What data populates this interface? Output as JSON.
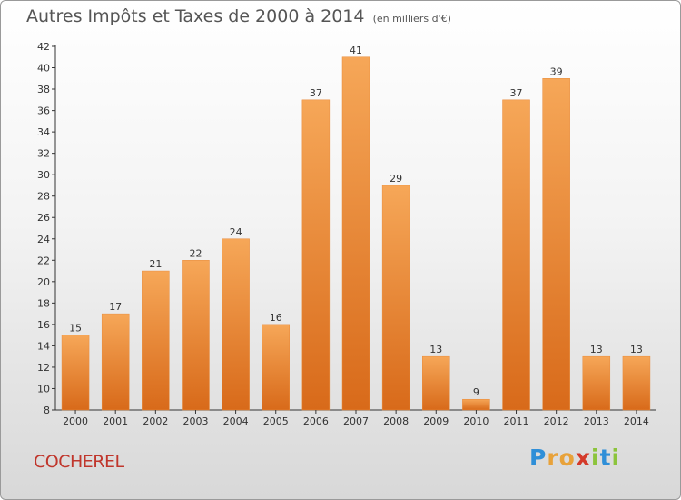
{
  "header": {
    "title": "Autres Impôts et Taxes de 2000 à 2014",
    "unit": "(en milliers d'€)"
  },
  "footer": {
    "commune": "COCHEREL",
    "logo_letters": [
      "P",
      "r",
      "o",
      "x",
      "i",
      "t",
      "i"
    ],
    "logo_colors": [
      "#2f8fd8",
      "#e8a23a",
      "#e8a23a",
      "#d43a2a",
      "#8cc43c",
      "#2f8fd8",
      "#8cc43c"
    ]
  },
  "colors": {
    "bar_light": "#f6a758",
    "bar_dark": "#d86a1a",
    "axis": "#333333",
    "grid": "#bbbbbb"
  },
  "chart_data": {
    "type": "bar",
    "title": "Autres Impôts et Taxes de 2000 à 2014",
    "ylabel": "(en milliers d'€)",
    "xlabel": "",
    "categories": [
      "2000",
      "2001",
      "2002",
      "2003",
      "2004",
      "2005",
      "2006",
      "2007",
      "2008",
      "2009",
      "2010",
      "2011",
      "2012",
      "2013",
      "2014"
    ],
    "values": [
      15,
      17,
      21,
      22,
      24,
      16,
      37,
      41,
      29,
      13,
      9,
      37,
      39,
      13,
      13
    ],
    "ylim": [
      8,
      42
    ],
    "yticks": [
      8,
      10,
      12,
      14,
      16,
      18,
      20,
      22,
      24,
      26,
      28,
      30,
      32,
      34,
      36,
      38,
      40,
      42
    ],
    "grid": false,
    "legend": "none"
  }
}
